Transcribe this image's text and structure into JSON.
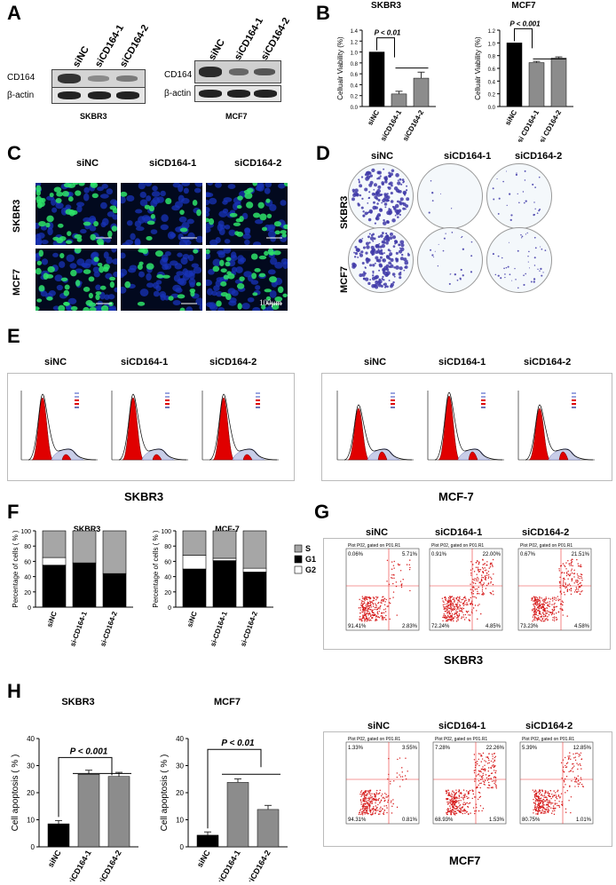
{
  "panels": {
    "A": "A",
    "B": "B",
    "C": "C",
    "D": "D",
    "E": "E",
    "F": "F",
    "G": "G",
    "H": "H"
  },
  "panelA": {
    "groups": [
      "siNC",
      "siCD164-1",
      "siCD164-2"
    ],
    "rows": [
      "CD164",
      "β-actin"
    ],
    "cell_lines": [
      "SKBR3",
      "MCF7"
    ]
  },
  "panelB": {
    "charts": [
      {
        "title": "SKBR3",
        "ylabel": "Cellualr Viability (%)",
        "categories": [
          "siNC",
          "siCD164-1",
          "siCD164-2"
        ],
        "values": [
          1.0,
          0.23,
          0.52
        ],
        "errors": [
          0,
          0.05,
          0.11
        ],
        "ylim": [
          0,
          1.4
        ],
        "ticks": [
          "0.0",
          "0.2",
          "0.4",
          "0.6",
          "0.8",
          "1.0",
          "1.2",
          "1.4"
        ],
        "pvalue": "P < 0.01"
      },
      {
        "title": "MCF7",
        "ylabel": "Cellualr Viability (%)",
        "categories": [
          "siNC",
          "si CD164-1",
          "si CD164-2"
        ],
        "values": [
          1.0,
          0.69,
          0.76
        ],
        "errors": [
          0,
          0.02,
          0.02
        ],
        "ylim": [
          0,
          1.2
        ],
        "ticks": [
          "0.0",
          "0.2",
          "0.4",
          "0.6",
          "0.8",
          "1.0",
          "1.2"
        ],
        "pvalue": "P < 0.001"
      }
    ]
  },
  "panelC": {
    "columns": [
      "siNC",
      "siCD164-1",
      "siCD164-2"
    ],
    "rows": [
      "SKBR3",
      "MCF7"
    ],
    "scale": "100μm"
  },
  "panelD": {
    "columns": [
      "siNC",
      "siCD164-1",
      "siCD164-2"
    ],
    "rows": [
      "SKBR3",
      "MCF7"
    ]
  },
  "panelE": {
    "columns": [
      "siNC",
      "siCD164-1",
      "siCD164-2"
    ],
    "left_line": "SKBR3",
    "right_line": "MCF-7"
  },
  "panelF": {
    "legend": [
      "S",
      "G1",
      "G2"
    ],
    "colors": {
      "S": "#a6a6a6",
      "G1": "#000000",
      "G2": "#ffffff"
    },
    "charts": [
      {
        "title": "SKBR3",
        "ylabel": "Percentage of cells ( % )",
        "categories": [
          "siNC",
          "si-CD164-1",
          "si-CD164-2"
        ],
        "G1": [
          55,
          58,
          44
        ],
        "G2": [
          10,
          0,
          0
        ],
        "S": [
          35,
          42,
          56
        ],
        "ticks": [
          "0",
          "20",
          "40",
          "60",
          "80",
          "100"
        ]
      },
      {
        "title": "MCF-7",
        "ylabel": "Percentage of cells ( % )",
        "categories": [
          "siNC",
          "si-CD164-1",
          "si-CD164-2"
        ],
        "G1": [
          50,
          61,
          46
        ],
        "G2": [
          18,
          3,
          5
        ],
        "S": [
          32,
          36,
          49
        ],
        "ticks": [
          "0",
          "20",
          "40",
          "60",
          "80",
          "100"
        ]
      }
    ]
  },
  "panelG": {
    "columns": [
      "siNC",
      "siCD164-1",
      "siCD164-2"
    ],
    "plot_title": "Plot P02, gated on P01.R1",
    "cell_line": "SKBR3",
    "quadrants": [
      {
        "ul": "0.06%",
        "ur": "5.71%",
        "ll": "91.41%",
        "lr": "2.83%"
      },
      {
        "ul": "0.91%",
        "ur": "22.00%",
        "ll": "72.24%",
        "lr": "4.85%"
      },
      {
        "ul": "0.67%",
        "ur": "21.51%",
        "ll": "73.23%",
        "lr": "4.58%"
      }
    ]
  },
  "panelH": {
    "charts": [
      {
        "title": "SKBR3",
        "ylabel": "Cell apoptosis ( % )",
        "categories": [
          "siNC",
          "siCD164-1",
          "siCD164-2"
        ],
        "values": [
          8.5,
          26.8,
          26.0
        ],
        "errors": [
          1.2,
          1.5,
          1.5
        ],
        "ylim": [
          0,
          40
        ],
        "ticks": [
          "0",
          "10",
          "20",
          "30",
          "40"
        ],
        "pvalue": "P < 0.001"
      },
      {
        "title": "MCF7",
        "ylabel": "Cell apoptosis ( % )",
        "categories": [
          "siNC",
          "siCD164-1",
          "siCD164-2"
        ],
        "values": [
          4.3,
          23.8,
          13.8
        ],
        "errors": [
          1.2,
          1.3,
          1.5
        ],
        "ylim": [
          0,
          40
        ],
        "ticks": [
          "0",
          "10",
          "20",
          "30",
          "40"
        ],
        "pvalue": "P < 0.01"
      }
    ],
    "flow": {
      "columns": [
        "siNC",
        "siCD164-1",
        "siCD164-2"
      ],
      "plot_title": "Plot P02, gated on P01.R1",
      "cell_line": "MCF7",
      "quadrants": [
        {
          "ul": "1.33%",
          "ur": "3.55%",
          "ll": "94.31%",
          "lr": "0.81%"
        },
        {
          "ul": "7.28%",
          "ur": "22.26%",
          "ll": "68.93%",
          "lr": "1.53%"
        },
        {
          "ul": "5.39%",
          "ur": "12.85%",
          "ll": "80.75%",
          "lr": "1.01%"
        }
      ]
    }
  },
  "chart_data": [
    {
      "type": "bar",
      "title": "SKBR3",
      "ylabel": "Cellualr Viability (%)",
      "categories": [
        "siNC",
        "siCD164-1",
        "siCD164-2"
      ],
      "values": [
        1.0,
        0.23,
        0.52
      ],
      "ylim": [
        0,
        1.4
      ]
    },
    {
      "type": "bar",
      "title": "MCF7",
      "ylabel": "Cellualr Viability (%)",
      "categories": [
        "siNC",
        "si CD164-1",
        "si CD164-2"
      ],
      "values": [
        1.0,
        0.69,
        0.76
      ],
      "ylim": [
        0,
        1.2
      ]
    },
    {
      "type": "bar",
      "title": "SKBR3",
      "ylabel": "Percentage of cells ( % )",
      "categories": [
        "siNC",
        "si-CD164-1",
        "si-CD164-2"
      ],
      "series": [
        {
          "name": "G1",
          "values": [
            55,
            58,
            44
          ]
        },
        {
          "name": "G2",
          "values": [
            10,
            0,
            0
          ]
        },
        {
          "name": "S",
          "values": [
            35,
            42,
            56
          ]
        }
      ]
    },
    {
      "type": "bar",
      "title": "MCF-7",
      "ylabel": "Percentage of cells ( % )",
      "categories": [
        "siNC",
        "si-CD164-1",
        "si-CD164-2"
      ],
      "series": [
        {
          "name": "G1",
          "values": [
            50,
            61,
            46
          ]
        },
        {
          "name": "G2",
          "values": [
            18,
            3,
            5
          ]
        },
        {
          "name": "S",
          "values": [
            32,
            36,
            49
          ]
        }
      ]
    },
    {
      "type": "bar",
      "title": "SKBR3",
      "ylabel": "Cell apoptosis ( % )",
      "categories": [
        "siNC",
        "siCD164-1",
        "siCD164-2"
      ],
      "values": [
        8.5,
        26.8,
        26.0
      ],
      "ylim": [
        0,
        40
      ]
    },
    {
      "type": "bar",
      "title": "MCF7",
      "ylabel": "Cell apoptosis ( % )",
      "categories": [
        "siNC",
        "siCD164-1",
        "siCD164-2"
      ],
      "values": [
        4.3,
        23.8,
        13.8
      ],
      "ylim": [
        0,
        40
      ]
    }
  ]
}
